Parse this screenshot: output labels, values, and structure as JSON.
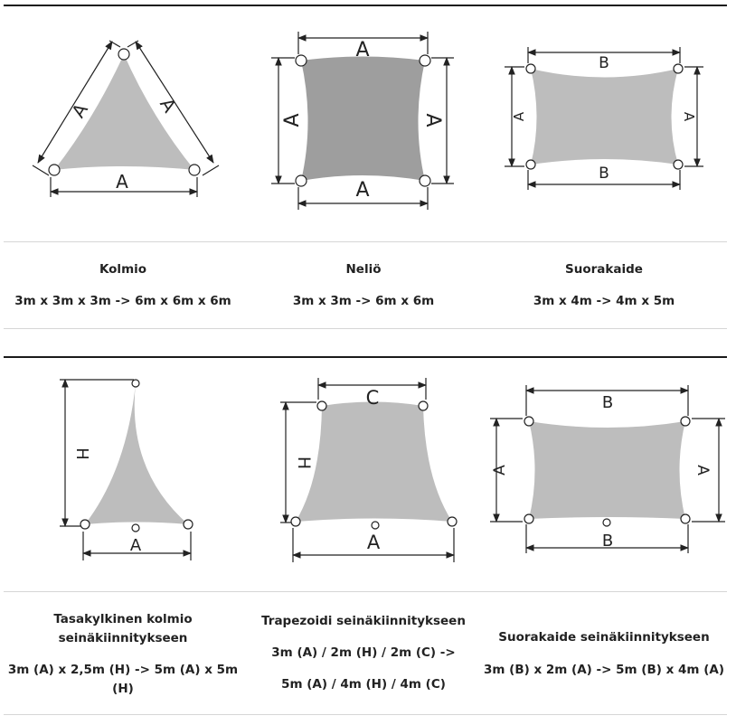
{
  "row1": {
    "labels": {
      "kolmio": {
        "a1": "A",
        "a2": "A",
        "a3": "A"
      },
      "nelio": {
        "top": "A",
        "bottom": "A",
        "left": "A",
        "right": "A"
      },
      "suorakaide": {
        "top": "B",
        "bottom": "B",
        "left": "A",
        "right": "A"
      }
    },
    "captions": [
      {
        "title": "Kolmio",
        "size": "3m x 3m x 3m -> 6m x 6m x 6m"
      },
      {
        "title": "Neliö",
        "size": "3m x 3m -> 6m x 6m"
      },
      {
        "title": "Suorakaide",
        "size": "3m x 4m -> 4m x 5m"
      }
    ]
  },
  "row2": {
    "labels": {
      "tasakylkinen": {
        "height": "H",
        "base": "A"
      },
      "trapezoidi": {
        "top": "C",
        "height": "H",
        "base": "A"
      },
      "suorakaide_seina": {
        "top": "B",
        "bottom": "B",
        "left": "A",
        "right": "A"
      }
    },
    "captions": [
      {
        "title_line1": "Tasakylkinen kolmio",
        "title_line2": "seinäkiinnitykseen",
        "size_line1": "3m (A) x 2,5m (H) -> 5m (A) x 5m",
        "size_line2": "(H)"
      },
      {
        "title": "Trapezoidi seinäkiinnitykseen",
        "size_line1": "3m (A) / 2m (H) / 2m (C) ->",
        "size_line2": "5m (A) / 4m (H) / 4m (C)"
      },
      {
        "title": "Suorakaide seinäkiinnitykseen",
        "size": "3m (B) x 2m (A) -> 5m (B) x 4m (A)"
      }
    ]
  }
}
